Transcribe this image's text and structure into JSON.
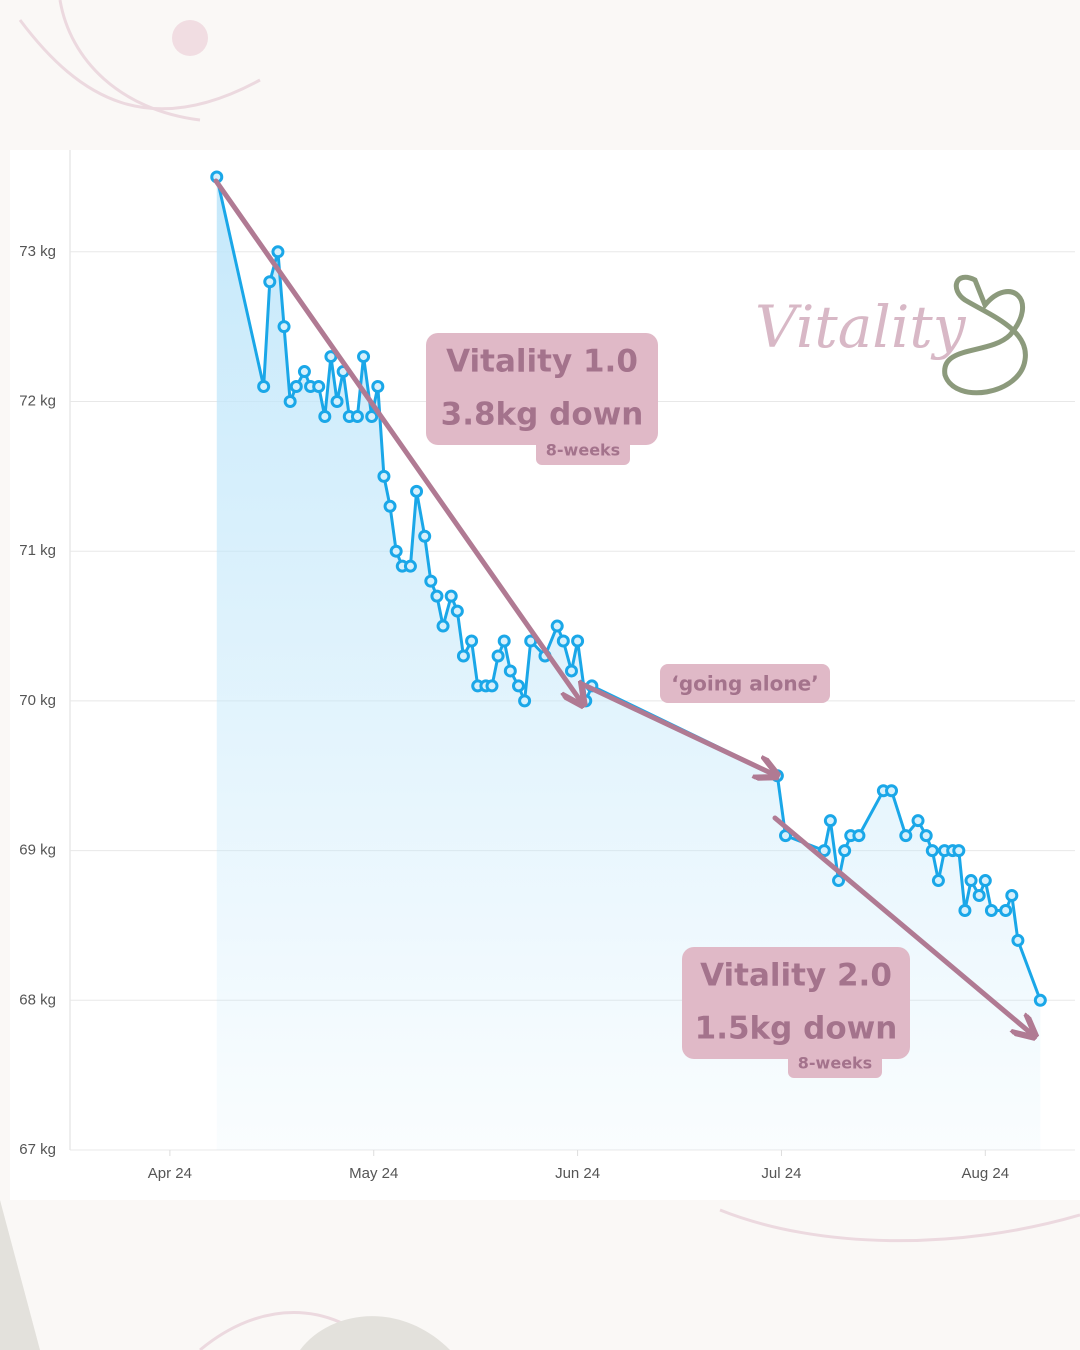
{
  "chart_data": {
    "type": "line",
    "color": "#1aa7e8",
    "area": true,
    "grid": true,
    "brand": "Vitality",
    "annotations": [
      {
        "title": "Vitality 1.0",
        "change": "3.8kg down",
        "period": "8-weeks"
      },
      {
        "title": "‘going alone’"
      },
      {
        "title": "Vitality 2.0",
        "change": "1.5kg down",
        "period": "8-weeks"
      }
    ],
    "x": [
      4.23,
      4.46,
      4.49,
      4.53,
      4.56,
      4.59,
      4.62,
      4.66,
      4.69,
      4.73,
      4.76,
      4.79,
      4.82,
      4.85,
      4.88,
      4.92,
      4.95,
      4.99,
      5.02,
      5.05,
      5.08,
      5.11,
      5.14,
      5.18,
      5.21,
      5.25,
      5.28,
      5.31,
      5.34,
      5.38,
      5.41,
      5.44,
      5.48,
      5.51,
      5.55,
      5.58,
      5.61,
      5.64,
      5.67,
      5.71,
      5.74,
      5.77,
      5.84,
      5.9,
      5.93,
      5.97,
      6.0,
      6.04,
      6.07,
      6.98,
      7.02,
      7.21,
      7.24,
      7.28,
      7.31,
      7.34,
      7.38,
      7.5,
      7.54,
      7.61,
      7.67,
      7.71,
      7.74,
      7.77,
      7.8,
      7.84,
      7.87,
      7.9,
      7.93,
      7.97,
      8.0,
      8.03,
      8.1,
      8.13,
      8.16,
      8.27
    ],
    "values": [
      73.5,
      72.1,
      72.8,
      73.0,
      72.5,
      72.0,
      72.1,
      72.2,
      72.1,
      72.1,
      71.9,
      72.3,
      72.0,
      72.2,
      71.9,
      71.9,
      72.3,
      71.9,
      72.1,
      71.5,
      71.3,
      71.0,
      70.9,
      70.9,
      71.4,
      71.1,
      70.8,
      70.7,
      70.5,
      70.7,
      70.6,
      70.3,
      70.4,
      70.1,
      70.1,
      70.1,
      70.3,
      70.4,
      70.2,
      70.1,
      70.0,
      70.4,
      70.3,
      70.5,
      70.4,
      70.2,
      70.4,
      70.0,
      70.1,
      69.5,
      69.1,
      69.0,
      69.2,
      68.8,
      69.0,
      69.1,
      69.1,
      69.4,
      69.4,
      69.1,
      69.2,
      69.1,
      69.0,
      68.8,
      69.0,
      69.0,
      69.0,
      68.6,
      68.8,
      68.7,
      68.8,
      68.6,
      68.6,
      68.7,
      68.4,
      68.0
    ],
    "xlim": [
      3.51,
      8.44
    ],
    "xticks": [
      {
        "value": 4,
        "label": "Apr 24"
      },
      {
        "value": 5,
        "label": "May 24"
      },
      {
        "value": 6,
        "label": "Jun 24"
      },
      {
        "value": 7,
        "label": "Jul 24"
      },
      {
        "value": 8,
        "label": "Aug 24"
      }
    ],
    "ylim": [
      67,
      73.68
    ],
    "yticks": [
      {
        "value": 67,
        "label": "67 kg"
      },
      {
        "value": 68,
        "label": "68 kg"
      },
      {
        "value": 69,
        "label": "69 kg"
      },
      {
        "value": 70,
        "label": "70 kg"
      },
      {
        "value": 71,
        "label": "71 kg"
      },
      {
        "value": 72,
        "label": "72 kg"
      },
      {
        "value": 73,
        "label": "73 kg"
      }
    ]
  }
}
